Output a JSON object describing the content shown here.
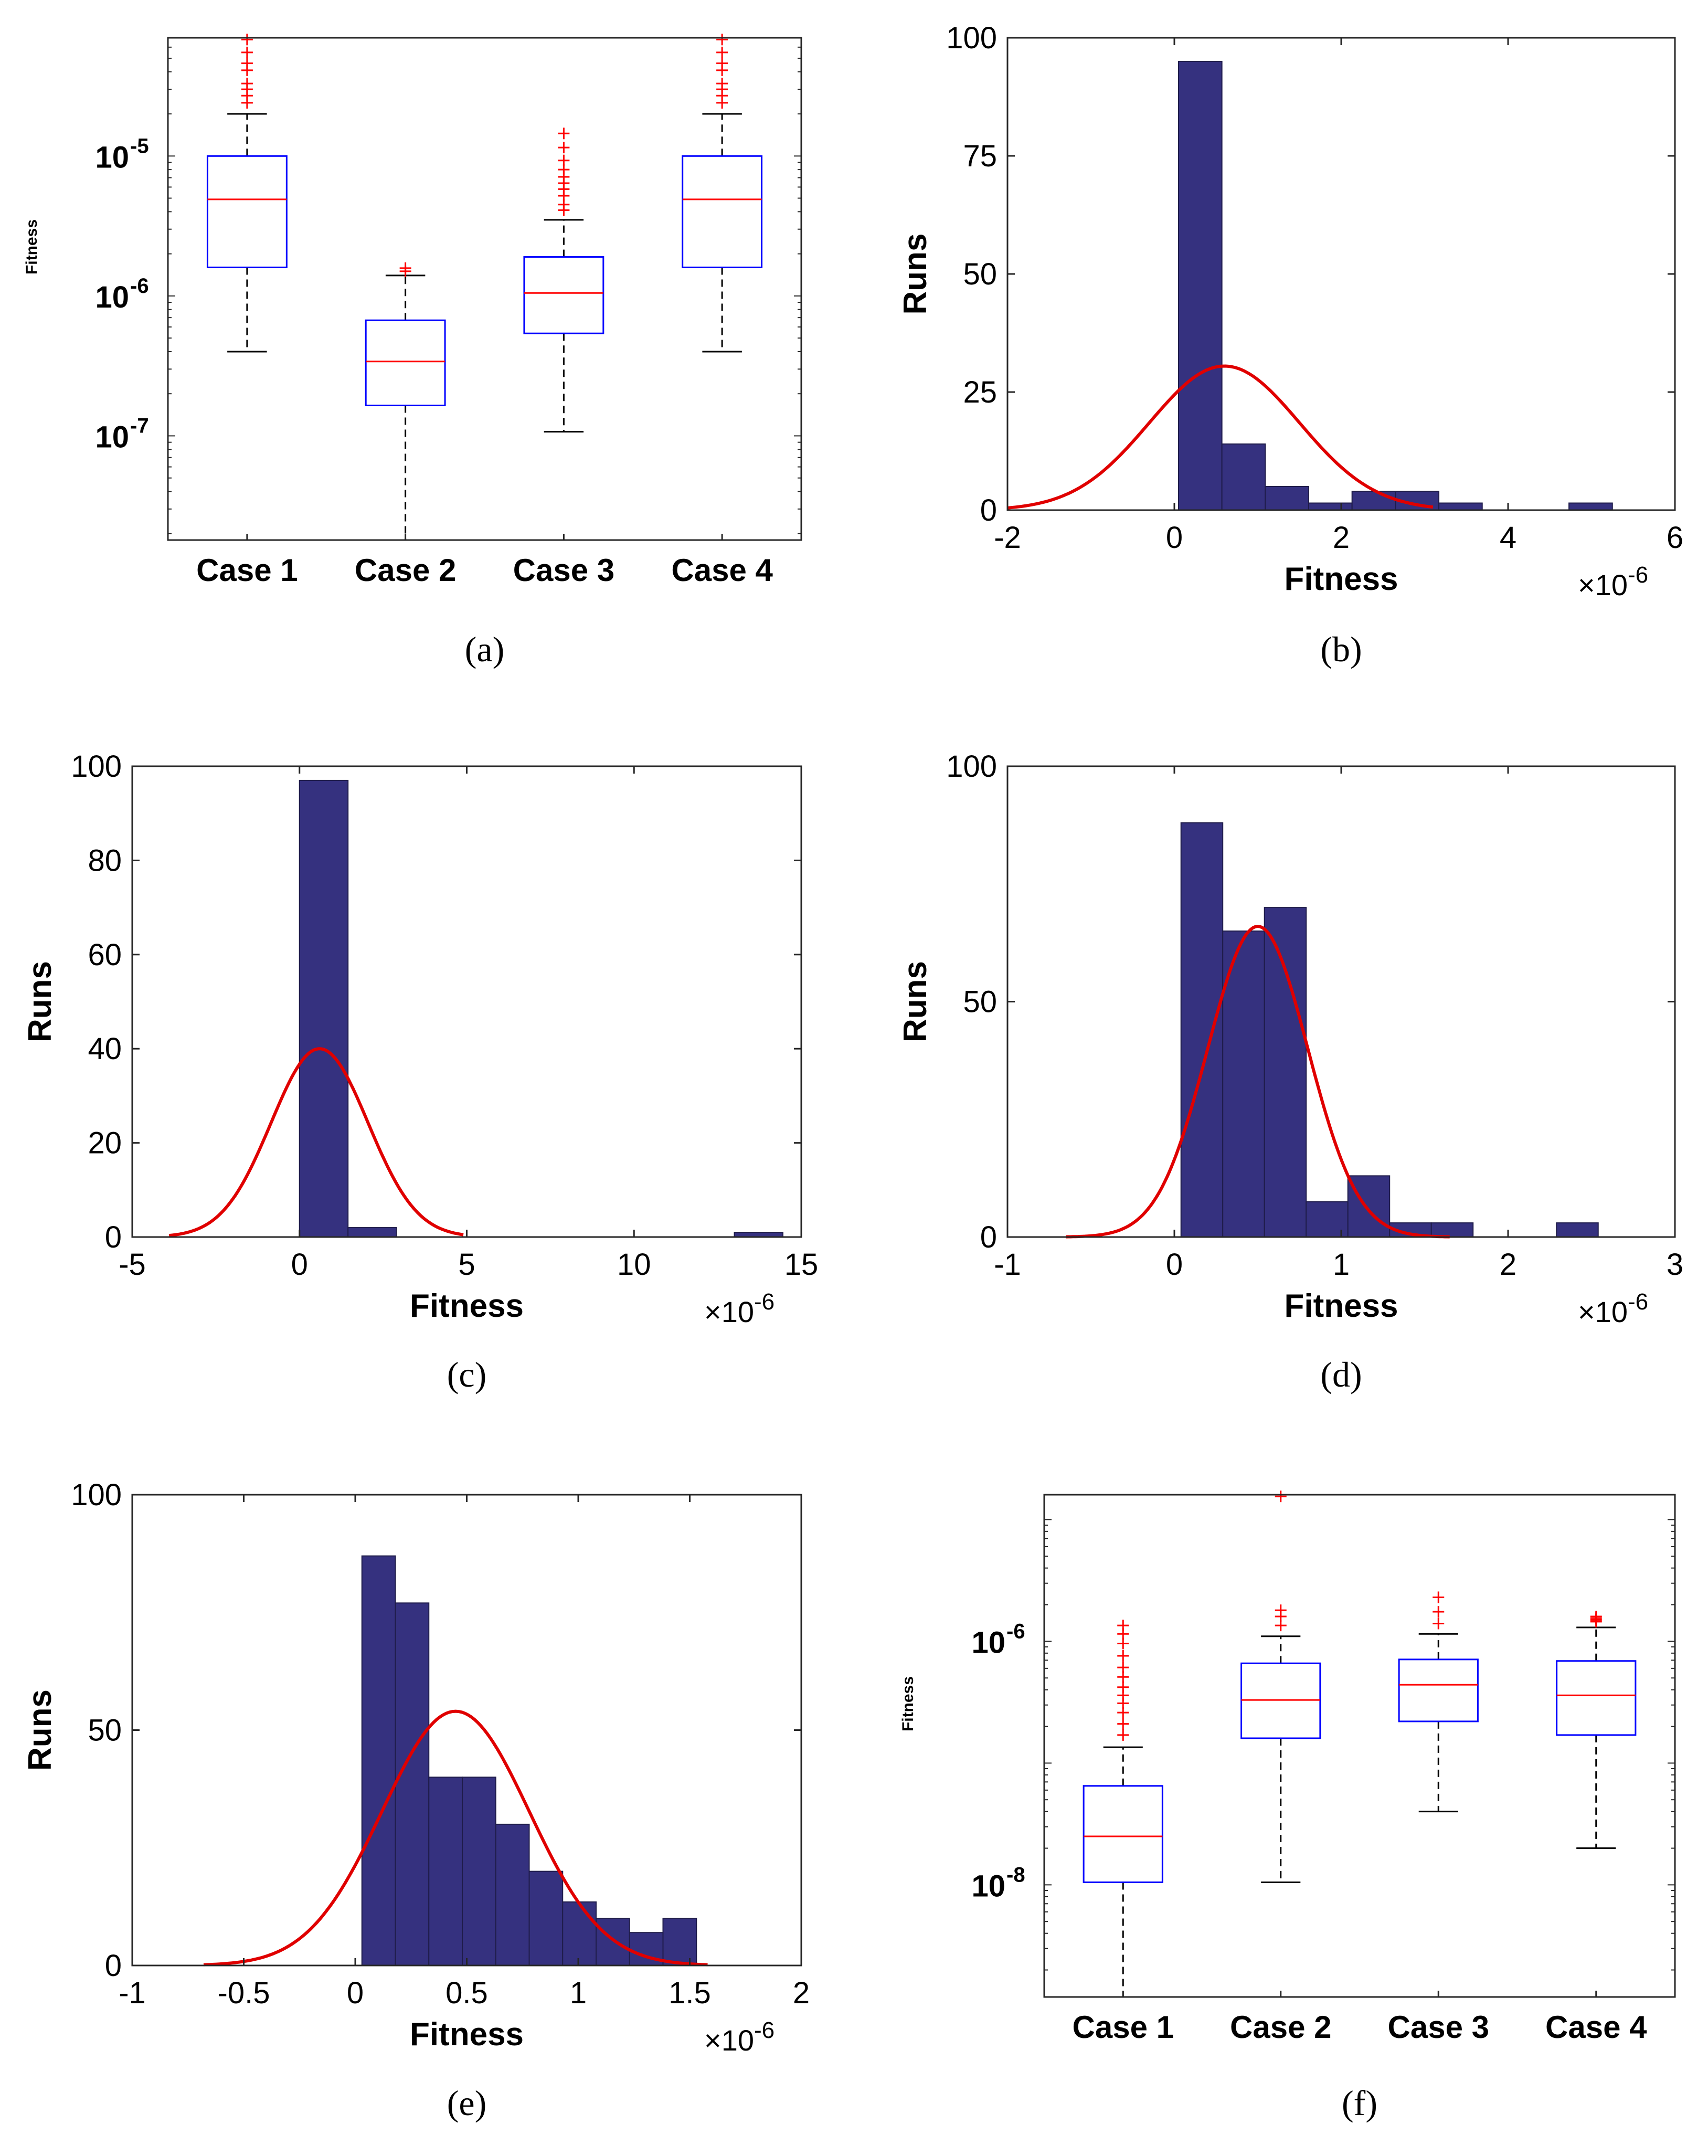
{
  "colors": {
    "bar_fill": "#35317f",
    "bar_edge": "#1f1c4a",
    "curve": "#e00000",
    "box": "#0000ff",
    "median": "#ff0000",
    "outlier": "#ff0000",
    "whisker": "#000000",
    "axis": "#262626"
  },
  "chart_data": [
    {
      "id": "a",
      "type": "box",
      "caption": "(a)",
      "ylabel": "Fitness",
      "yscale": "log",
      "ylim": [
        1.8e-08,
        7e-05
      ],
      "ytick_values": [
        1e-07,
        1e-06,
        1e-05
      ],
      "ytick_labels": [
        [
          "10",
          "-7"
        ],
        [
          "10",
          "-6"
        ],
        [
          "10",
          "-5"
        ]
      ],
      "categories": [
        "Case 1",
        "Case 2",
        "Case 3",
        "Case 4"
      ],
      "boxes": [
        {
          "whisker_low": 4e-07,
          "q1": 1.6e-06,
          "median": 4.9e-06,
          "q3": 1e-05,
          "whisker_high": 2e-05,
          "outliers": [
            2.4e-05,
            2.7e-05,
            3e-05,
            3.3e-05,
            4.1e-05,
            4.6e-05,
            5.5e-05,
            6.8e-05
          ]
        },
        {
          "whisker_low": 1.8e-08,
          "q1": 1.65e-07,
          "median": 3.4e-07,
          "q3": 6.7e-07,
          "whisker_high": 1.4e-06,
          "outliers": [
            1.5e-06,
            1.58e-06
          ]
        },
        {
          "whisker_low": 1.07e-07,
          "q1": 5.4e-07,
          "median": 1.05e-06,
          "q3": 1.9e-06,
          "whisker_high": 3.5e-06,
          "outliers": [
            4.1e-06,
            4.5e-06,
            5.2e-06,
            5.8e-06,
            6.4e-06,
            7.1e-06,
            8e-06,
            9.3e-06,
            1.15e-05,
            1.45e-05
          ]
        },
        {
          "whisker_low": 4e-07,
          "q1": 1.6e-06,
          "median": 4.9e-06,
          "q3": 1e-05,
          "whisker_high": 2e-05,
          "outliers": [
            2.4e-05,
            2.7e-05,
            3e-05,
            3.3e-05,
            4.1e-05,
            4.6e-05,
            5.5e-05,
            6.8e-05
          ]
        }
      ]
    },
    {
      "id": "b",
      "type": "bar",
      "caption": "(b)",
      "xlabel": "Fitness",
      "ylabel": "Runs",
      "exponent": [
        "×10",
        "-6"
      ],
      "xlim": [
        -2,
        6
      ],
      "ylim": [
        0,
        100
      ],
      "xticks": [
        -2,
        0,
        2,
        4,
        6
      ],
      "yticks": [
        0,
        25,
        50,
        75,
        100
      ],
      "bins": [
        {
          "x0": 0.05,
          "x1": 0.57,
          "count": 95
        },
        {
          "x0": 0.57,
          "x1": 1.09,
          "count": 14
        },
        {
          "x0": 1.09,
          "x1": 1.61,
          "count": 5
        },
        {
          "x0": 1.61,
          "x1": 2.13,
          "count": 1.5
        },
        {
          "x0": 2.13,
          "x1": 2.65,
          "count": 4
        },
        {
          "x0": 2.65,
          "x1": 3.17,
          "count": 4
        },
        {
          "x0": 3.17,
          "x1": 3.69,
          "count": 1.5
        },
        {
          "x0": 4.73,
          "x1": 5.25,
          "count": 1.5
        }
      ],
      "curve": {
        "mean": 0.6,
        "sd": 0.9,
        "peak": 30.5,
        "x_from": -2,
        "x_to": 3.1
      }
    },
    {
      "id": "c",
      "type": "bar",
      "caption": "(c)",
      "xlabel": "Fitness",
      "ylabel": "Runs",
      "exponent": [
        "×10",
        "-6"
      ],
      "xlim": [
        -5,
        15
      ],
      "ylim": [
        0,
        100
      ],
      "xticks": [
        -5,
        0,
        5,
        10,
        15
      ],
      "yticks": [
        0,
        20,
        40,
        60,
        80,
        100
      ],
      "bins": [
        {
          "x0": 0.0,
          "x1": 1.45,
          "count": 97
        },
        {
          "x0": 1.45,
          "x1": 2.9,
          "count": 2
        },
        {
          "x0": 13.0,
          "x1": 14.45,
          "count": 1
        }
      ],
      "curve": {
        "mean": 0.6,
        "sd": 1.45,
        "peak": 40,
        "x_from": -3.9,
        "x_to": 4.9
      }
    },
    {
      "id": "d",
      "type": "bar",
      "caption": "(d)",
      "xlabel": "Fitness",
      "ylabel": "Runs",
      "exponent": [
        "×10",
        "-6"
      ],
      "xlim": [
        -1,
        3
      ],
      "ylim": [
        0,
        100
      ],
      "xticks": [
        -1,
        0,
        1,
        2,
        3
      ],
      "yticks": [
        0,
        50,
        100
      ],
      "bins": [
        {
          "x0": 0.04,
          "x1": 0.29,
          "count": 88
        },
        {
          "x0": 0.29,
          "x1": 0.54,
          "count": 65
        },
        {
          "x0": 0.54,
          "x1": 0.79,
          "count": 70
        },
        {
          "x0": 0.79,
          "x1": 1.04,
          "count": 7.5
        },
        {
          "x0": 1.04,
          "x1": 1.29,
          "count": 13
        },
        {
          "x0": 1.29,
          "x1": 1.54,
          "count": 3
        },
        {
          "x0": 1.54,
          "x1": 1.79,
          "count": 3
        },
        {
          "x0": 2.29,
          "x1": 2.54,
          "count": 3
        }
      ],
      "curve": {
        "mean": 0.5,
        "sd": 0.3,
        "peak": 66,
        "x_from": -0.65,
        "x_to": 1.65
      }
    },
    {
      "id": "e",
      "type": "bar",
      "caption": "(e)",
      "xlabel": "Fitness",
      "ylabel": "Runs",
      "exponent": [
        "×10",
        "-6"
      ],
      "xlim": [
        -1,
        2
      ],
      "ylim": [
        0,
        100
      ],
      "xticks": [
        -1,
        -0.5,
        0,
        0.5,
        1,
        1.5,
        2
      ],
      "xtick_labels": [
        "-1",
        "-0.5",
        "0",
        "0.5",
        "1",
        "1.5",
        "2"
      ],
      "yticks": [
        0,
        50,
        100
      ],
      "bins": [
        {
          "x0": 0.03,
          "x1": 0.18,
          "count": 87
        },
        {
          "x0": 0.18,
          "x1": 0.33,
          "count": 77
        },
        {
          "x0": 0.33,
          "x1": 0.48,
          "count": 40
        },
        {
          "x0": 0.48,
          "x1": 0.63,
          "count": 40
        },
        {
          "x0": 0.63,
          "x1": 0.78,
          "count": 30
        },
        {
          "x0": 0.78,
          "x1": 0.93,
          "count": 20
        },
        {
          "x0": 0.93,
          "x1": 1.08,
          "count": 13.5
        },
        {
          "x0": 1.08,
          "x1": 1.23,
          "count": 10
        },
        {
          "x0": 1.23,
          "x1": 1.38,
          "count": 7
        },
        {
          "x0": 1.38,
          "x1": 1.53,
          "count": 10
        }
      ],
      "curve": {
        "mean": 0.45,
        "sd": 0.33,
        "peak": 54,
        "x_from": -0.68,
        "x_to": 1.58
      }
    },
    {
      "id": "f",
      "type": "box",
      "caption": "(f)",
      "ylabel": "Fitness",
      "yscale": "log",
      "ylim": [
        1.2e-09,
        1.6e-05
      ],
      "ytick_values": [
        1e-08,
        1e-06
      ],
      "ytick_labels": [
        [
          "10",
          "-8"
        ],
        [
          "10",
          "-6"
        ]
      ],
      "categories": [
        "Case 1",
        "Case 2",
        "Case 3",
        "Case 4"
      ],
      "boxes": [
        {
          "whisker_low": 1.2e-09,
          "q1": 1.05e-08,
          "median": 2.5e-08,
          "q3": 6.5e-08,
          "whisker_high": 1.35e-07,
          "outliers": [
            1.7e-07,
            2.1e-07,
            2.6e-07,
            3.1e-07,
            3.6e-07,
            4.2e-07,
            5.1e-07,
            6.1e-07,
            7.6e-07,
            9.6e-07,
            1.15e-06,
            1.35e-06
          ]
        },
        {
          "whisker_low": 1.05e-08,
          "q1": 1.6e-07,
          "median": 3.3e-07,
          "q3": 6.6e-07,
          "whisker_high": 1.1e-06,
          "outliers": [
            1.35e-06,
            1.6e-06,
            1.8e-06,
            1.55e-05
          ]
        },
        {
          "whisker_low": 4e-08,
          "q1": 2.2e-07,
          "median": 4.4e-07,
          "q3": 7.1e-07,
          "whisker_high": 1.15e-06,
          "outliers": [
            1.4e-06,
            1.75e-06,
            2.3e-06
          ]
        },
        {
          "whisker_low": 2e-08,
          "q1": 1.7e-07,
          "median": 3.6e-07,
          "q3": 6.9e-07,
          "whisker_high": 1.3e-06,
          "outliers": [
            1.45e-06,
            1.5e-06,
            1.55e-06,
            1.6e-06
          ]
        }
      ]
    }
  ]
}
